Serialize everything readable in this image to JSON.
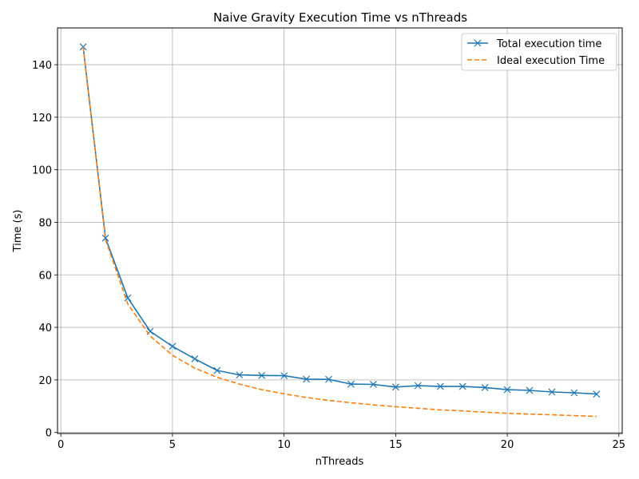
{
  "chart_data": {
    "type": "line",
    "title": "Naive Gravity Execution Time vs nThreads",
    "xlabel": "nThreads",
    "ylabel": "Time (s)",
    "xlim": [
      -0.15,
      25.15
    ],
    "ylim": [
      -0.4,
      154
    ],
    "xticks": [
      0,
      5,
      10,
      15,
      20,
      25
    ],
    "yticks": [
      0,
      20,
      40,
      60,
      80,
      100,
      120,
      140
    ],
    "grid": true,
    "legend_position": "top-right",
    "series": [
      {
        "name": "Total execution time",
        "color": "#1f77b4",
        "style": "solid",
        "marker": "x",
        "x": [
          1,
          2,
          3,
          4,
          5,
          6,
          7,
          8,
          9,
          10,
          11,
          12,
          13,
          14,
          15,
          16,
          17,
          18,
          19,
          20,
          21,
          22,
          23,
          24
        ],
        "y": [
          146.8,
          74.0,
          51.2,
          38.5,
          32.8,
          28.0,
          23.6,
          21.9,
          21.7,
          21.6,
          20.3,
          20.2,
          18.4,
          18.3,
          17.3,
          17.8,
          17.5,
          17.5,
          17.1,
          16.3,
          16.0,
          15.4,
          15.1,
          14.6
        ]
      },
      {
        "name": "Ideal execution Time",
        "color": "#ff7f0e",
        "style": "dashed",
        "marker": "none",
        "x": [
          1,
          2,
          3,
          4,
          5,
          6,
          7,
          8,
          9,
          10,
          11,
          12,
          13,
          14,
          15,
          16,
          17,
          18,
          19,
          20,
          21,
          22,
          23,
          24
        ],
        "y": [
          146.8,
          73.4,
          48.9,
          36.7,
          29.4,
          24.5,
          21.0,
          18.4,
          16.3,
          14.7,
          13.3,
          12.2,
          11.3,
          10.5,
          9.8,
          9.2,
          8.6,
          8.2,
          7.7,
          7.3,
          7.0,
          6.7,
          6.4,
          6.1
        ]
      }
    ]
  }
}
